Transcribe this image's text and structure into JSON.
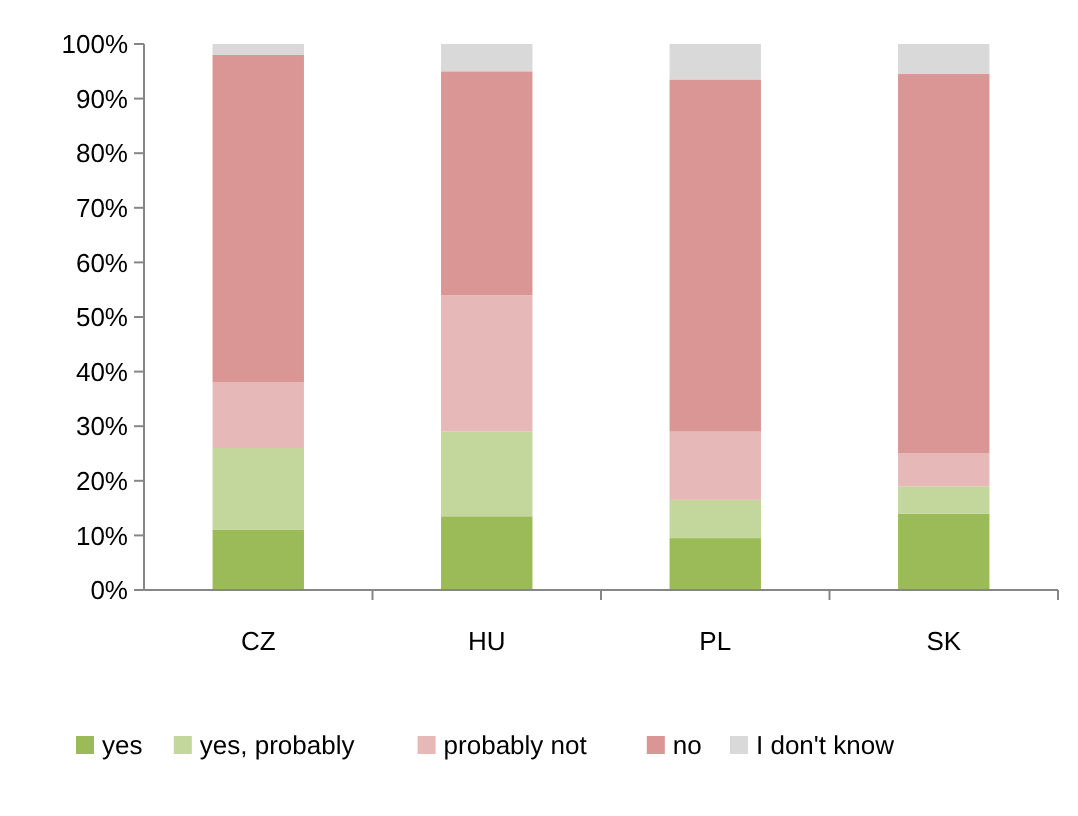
{
  "chart_data": {
    "type": "bar",
    "stacked": true,
    "categories": [
      "CZ",
      "HU",
      "PL",
      "SK"
    ],
    "series": [
      {
        "name": "yes",
        "color": "#9bbb59",
        "values": [
          11,
          13.5,
          9.5,
          14
        ]
      },
      {
        "name": "yes, probably",
        "color": "#c3d69b",
        "values": [
          15,
          15.5,
          7,
          5
        ]
      },
      {
        "name": "probably not",
        "color": "#e6b9b8",
        "values": [
          12,
          25,
          12.5,
          6
        ]
      },
      {
        "name": "no",
        "color": "#d99694",
        "values": [
          60,
          41,
          64.5,
          69.5
        ]
      },
      {
        "name": "I don't know",
        "color": "#d9d9d9",
        "values": [
          2,
          5,
          6.5,
          5.5
        ]
      }
    ],
    "ylim": [
      0,
      100
    ],
    "yticks": [
      {
        "value": 0,
        "label": "0%"
      },
      {
        "value": 10,
        "label": "10%"
      },
      {
        "value": 20,
        "label": "20%"
      },
      {
        "value": 30,
        "label": "30%"
      },
      {
        "value": 40,
        "label": "40%"
      },
      {
        "value": 50,
        "label": "50%"
      },
      {
        "value": 60,
        "label": "60%"
      },
      {
        "value": 70,
        "label": "70%"
      },
      {
        "value": 80,
        "label": "80%"
      },
      {
        "value": 90,
        "label": "90%"
      },
      {
        "value": 100,
        "label": "100%"
      }
    ],
    "grid": false,
    "legend": "bottom"
  }
}
